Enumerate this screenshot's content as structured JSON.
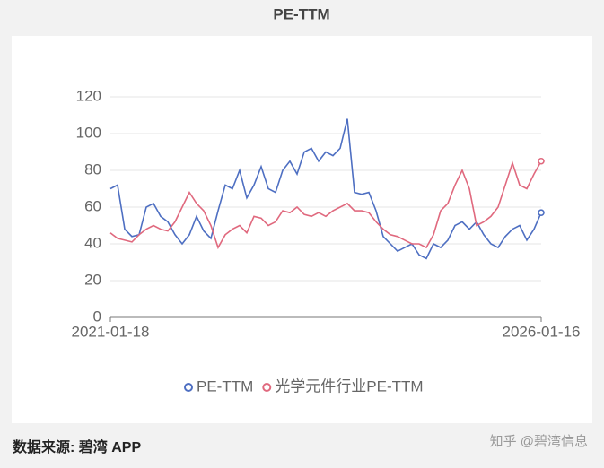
{
  "chart_data": {
    "type": "line",
    "title": "PE-TTM",
    "categories": [
      "2021-01-18",
      null,
      null,
      null,
      null,
      null,
      null,
      null,
      null,
      null,
      null,
      null,
      null,
      null,
      null,
      null,
      null,
      null,
      null,
      null,
      null,
      null,
      null,
      null,
      null,
      null,
      null,
      null,
      null,
      null,
      null,
      null,
      null,
      null,
      null,
      null,
      null,
      null,
      null,
      null,
      null,
      null,
      null,
      null,
      null,
      null,
      null,
      null,
      null,
      null,
      null,
      null,
      null,
      null,
      null,
      null,
      null,
      null,
      null,
      null,
      "2026-01-16"
    ],
    "series": [
      {
        "name": "PE-TTM",
        "color": "#4e6fc2",
        "values": [
          70,
          72,
          48,
          44,
          45,
          60,
          62,
          55,
          52,
          45,
          40,
          45,
          55,
          47,
          43,
          58,
          72,
          70,
          80,
          65,
          72,
          82,
          70,
          68,
          80,
          85,
          78,
          90,
          92,
          85,
          90,
          88,
          92,
          108,
          68,
          67,
          68,
          58,
          44,
          40,
          36,
          38,
          40,
          34,
          32,
          40,
          38,
          42,
          50,
          52,
          48,
          52,
          45,
          40,
          38,
          44,
          48,
          50,
          42,
          48,
          57
        ]
      },
      {
        "name": "光学元件行业PE-TTM",
        "color": "#e0697e",
        "values": [
          46,
          43,
          42,
          41,
          45,
          48,
          50,
          48,
          47,
          52,
          60,
          68,
          62,
          58,
          50,
          38,
          45,
          48,
          50,
          46,
          55,
          54,
          50,
          52,
          58,
          57,
          60,
          56,
          55,
          57,
          55,
          58,
          60,
          62,
          58,
          58,
          57,
          52,
          48,
          45,
          44,
          42,
          40,
          40,
          38,
          45,
          58,
          62,
          72,
          80,
          70,
          50,
          52,
          55,
          60,
          72,
          84,
          72,
          70,
          78,
          85
        ]
      }
    ],
    "ylim": [
      0,
      120
    ],
    "yticks": [
      0,
      20,
      40,
      60,
      80,
      100,
      120
    ],
    "grid": true,
    "legend": "bottom"
  },
  "footer": {
    "source": "数据来源: 碧湾 APP",
    "credit": "知乎 @碧湾信息"
  }
}
